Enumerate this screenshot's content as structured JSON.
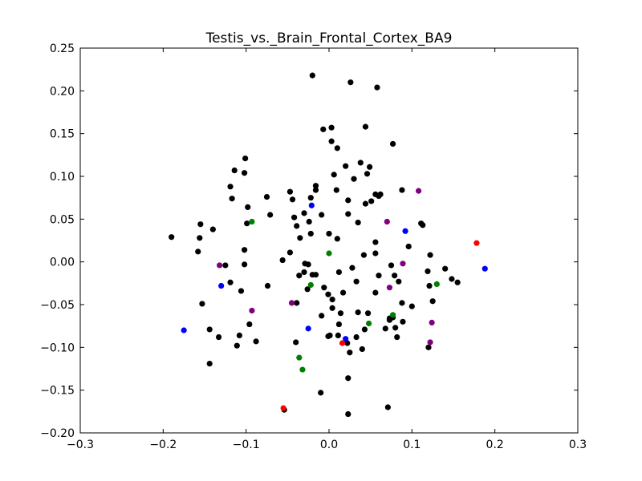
{
  "chart_data": {
    "type": "scatter",
    "title": "Testis_vs._Brain_Frontal_Cortex_BA9",
    "xlabel": "",
    "ylabel": "",
    "xlim": [
      -0.3,
      0.3
    ],
    "ylim": [
      -0.2,
      0.25
    ],
    "grid": false,
    "x_ticks": [
      -0.3,
      -0.2,
      -0.1,
      0.0,
      0.1,
      0.2,
      0.3
    ],
    "x_tick_labels": [
      "−0.3",
      "−0.2",
      "−0.1",
      "0.0",
      "0.1",
      "0.2",
      "0.3"
    ],
    "y_ticks": [
      -0.2,
      -0.15,
      -0.1,
      -0.05,
      0.0,
      0.05,
      0.1,
      0.15,
      0.2,
      0.25
    ],
    "y_tick_labels": [
      "−0.20",
      "−0.15",
      "−0.10",
      "−0.05",
      "0.00",
      "0.05",
      "0.10",
      "0.15",
      "0.20",
      "0.25"
    ],
    "colors": {
      "black": "#000000",
      "red": "#ff0000",
      "green": "#008000",
      "blue": "#0000ff",
      "purple": "#800080"
    },
    "series": [
      {
        "color": "#000000",
        "points": [
          [
            -0.02,
            0.218
          ],
          [
            0.026,
            0.21
          ],
          [
            0.058,
            0.204
          ],
          [
            0.044,
            0.158
          ],
          [
            0.003,
            0.157
          ],
          [
            -0.007,
            0.155
          ],
          [
            0.003,
            0.141
          ],
          [
            0.077,
            0.138
          ],
          [
            0.01,
            0.133
          ],
          [
            -0.101,
            0.121
          ],
          [
            0.038,
            0.116
          ],
          [
            0.049,
            0.111
          ],
          [
            0.02,
            0.112
          ],
          [
            -0.114,
            0.107
          ],
          [
            -0.102,
            0.104
          ],
          [
            0.046,
            0.103
          ],
          [
            0.006,
            0.102
          ],
          [
            0.03,
            0.097
          ],
          [
            -0.016,
            0.089
          ],
          [
            -0.119,
            0.088
          ],
          [
            0.009,
            0.084
          ],
          [
            -0.016,
            0.084
          ],
          [
            0.088,
            0.084
          ],
          [
            -0.047,
            0.082
          ],
          [
            0.056,
            0.079
          ],
          [
            0.062,
            0.079
          ],
          [
            0.06,
            0.077
          ],
          [
            -0.075,
            0.076
          ],
          [
            -0.022,
            0.075
          ],
          [
            -0.117,
            0.074
          ],
          [
            -0.044,
            0.073
          ],
          [
            0.023,
            0.072
          ],
          [
            0.051,
            0.071
          ],
          [
            0.044,
            0.068
          ],
          [
            -0.098,
            0.064
          ],
          [
            -0.03,
            0.057
          ],
          [
            -0.009,
            0.055
          ],
          [
            0.023,
            0.056
          ],
          [
            -0.071,
            0.055
          ],
          [
            -0.042,
            0.052
          ],
          [
            0.035,
            0.046
          ],
          [
            -0.099,
            0.045
          ],
          [
            0.111,
            0.045
          ],
          [
            0.113,
            0.043
          ],
          [
            -0.155,
            0.044
          ],
          [
            -0.024,
            0.047
          ],
          [
            -0.039,
            0.042
          ],
          [
            -0.14,
            0.038
          ],
          [
            -0.022,
            0.033
          ],
          [
            -0.035,
            0.028
          ],
          [
            0.0,
            0.033
          ],
          [
            -0.156,
            0.028
          ],
          [
            0.01,
            0.027
          ],
          [
            0.056,
            0.023
          ],
          [
            0.096,
            0.018
          ],
          [
            -0.19,
            0.029
          ],
          [
            -0.158,
            0.012
          ],
          [
            -0.102,
            0.014
          ],
          [
            -0.047,
            0.011
          ],
          [
            0.042,
            0.008
          ],
          [
            0.056,
            0.01
          ],
          [
            0.122,
            0.008
          ],
          [
            -0.056,
            0.002
          ],
          [
            -0.025,
            -0.003
          ],
          [
            -0.029,
            -0.002
          ],
          [
            -0.125,
            -0.004
          ],
          [
            -0.102,
            -0.003
          ],
          [
            0.075,
            -0.004
          ],
          [
            0.028,
            -0.007
          ],
          [
            0.14,
            -0.008
          ],
          [
            0.119,
            -0.011
          ],
          [
            0.012,
            -0.012
          ],
          [
            -0.03,
            -0.012
          ],
          [
            -0.02,
            -0.015
          ],
          [
            -0.016,
            -0.015
          ],
          [
            -0.036,
            -0.016
          ],
          [
            0.06,
            -0.016
          ],
          [
            0.079,
            -0.016
          ],
          [
            0.148,
            -0.02
          ],
          [
            0.155,
            -0.024
          ],
          [
            -0.119,
            -0.024
          ],
          [
            0.033,
            -0.023
          ],
          [
            0.084,
            -0.023
          ],
          [
            0.121,
            -0.028
          ],
          [
            -0.074,
            -0.028
          ],
          [
            -0.006,
            -0.03
          ],
          [
            -0.026,
            -0.032
          ],
          [
            -0.106,
            -0.034
          ],
          [
            0.017,
            -0.036
          ],
          [
            0.056,
            -0.036
          ],
          [
            -0.001,
            -0.038
          ],
          [
            0.004,
            -0.044
          ],
          [
            0.125,
            -0.046
          ],
          [
            -0.039,
            -0.048
          ],
          [
            -0.153,
            -0.049
          ],
          [
            0.088,
            -0.048
          ],
          [
            0.1,
            -0.052
          ],
          [
            0.004,
            -0.054
          ],
          [
            0.035,
            -0.059
          ],
          [
            0.014,
            -0.06
          ],
          [
            0.047,
            -0.06
          ],
          [
            -0.009,
            -0.063
          ],
          [
            0.073,
            -0.066
          ],
          [
            0.077,
            -0.065
          ],
          [
            0.073,
            -0.068
          ],
          [
            0.089,
            -0.07
          ],
          [
            -0.096,
            -0.073
          ],
          [
            0.012,
            -0.073
          ],
          [
            -0.144,
            -0.079
          ],
          [
            0.068,
            -0.078
          ],
          [
            0.08,
            -0.077
          ],
          [
            0.043,
            -0.079
          ],
          [
            -0.108,
            -0.086
          ],
          [
            -0.133,
            -0.088
          ],
          [
            0.001,
            -0.086
          ],
          [
            -0.001,
            -0.087
          ],
          [
            0.011,
            -0.086
          ],
          [
            0.033,
            -0.088
          ],
          [
            0.082,
            -0.088
          ],
          [
            -0.088,
            -0.093
          ],
          [
            -0.04,
            -0.094
          ],
          [
            0.022,
            -0.095
          ],
          [
            -0.111,
            -0.098
          ],
          [
            0.12,
            -0.1
          ],
          [
            0.04,
            -0.102
          ],
          [
            0.025,
            -0.106
          ],
          [
            -0.144,
            -0.119
          ],
          [
            0.023,
            -0.136
          ],
          [
            -0.01,
            -0.153
          ],
          [
            0.071,
            -0.17
          ],
          [
            -0.054,
            -0.173
          ],
          [
            0.023,
            -0.178
          ]
        ]
      },
      {
        "color": "#ff0000",
        "points": [
          [
            0.178,
            0.022
          ],
          [
            0.016,
            -0.095
          ],
          [
            -0.055,
            -0.171
          ]
        ]
      },
      {
        "color": "#008000",
        "points": [
          [
            -0.093,
            0.047
          ],
          [
            0.0,
            0.01
          ],
          [
            -0.022,
            -0.027
          ],
          [
            0.13,
            -0.026
          ],
          [
            0.077,
            -0.062
          ],
          [
            0.048,
            -0.072
          ],
          [
            -0.036,
            -0.112
          ],
          [
            -0.032,
            -0.126
          ]
        ]
      },
      {
        "color": "#0000ff",
        "points": [
          [
            -0.021,
            0.066
          ],
          [
            0.092,
            0.036
          ],
          [
            0.188,
            -0.008
          ],
          [
            -0.13,
            -0.028
          ],
          [
            -0.025,
            -0.078
          ],
          [
            -0.175,
            -0.08
          ],
          [
            0.02,
            -0.09
          ]
        ]
      },
      {
        "color": "#800080",
        "points": [
          [
            0.108,
            0.083
          ],
          [
            0.07,
            0.047
          ],
          [
            0.089,
            -0.002
          ],
          [
            -0.132,
            -0.004
          ],
          [
            0.073,
            -0.03
          ],
          [
            -0.045,
            -0.048
          ],
          [
            -0.093,
            -0.057
          ],
          [
            0.124,
            -0.071
          ],
          [
            0.122,
            -0.094
          ]
        ]
      }
    ]
  }
}
